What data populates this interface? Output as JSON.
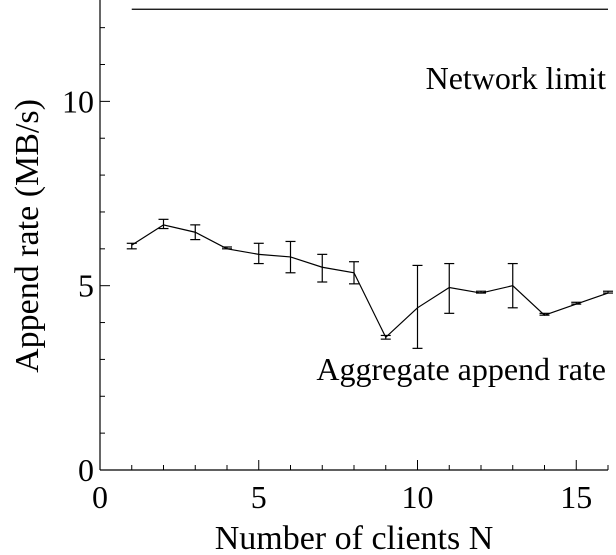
{
  "chart_data": {
    "type": "line",
    "xlabel": "Number of clients N",
    "ylabel": "Append rate (MB/s)",
    "xlim": [
      0,
      16
    ],
    "ylim": [
      0,
      12.75
    ],
    "x_ticks": [
      0,
      5,
      10,
      15
    ],
    "y_ticks": [
      0,
      5,
      10
    ],
    "grid": false,
    "series": [
      {
        "name": "Network limit",
        "x": [
          1,
          16
        ],
        "values": [
          12.5,
          12.5
        ],
        "label_position": [
          16,
          10.7
        ]
      },
      {
        "name": "Aggregate append rate",
        "x": [
          1,
          2,
          3,
          4,
          5,
          6,
          7,
          8,
          9,
          10,
          11,
          12,
          13,
          14,
          15,
          16
        ],
        "values": [
          6.1,
          6.65,
          6.45,
          6.0,
          5.85,
          5.78,
          5.5,
          5.35,
          3.6,
          4.4,
          4.95,
          4.8,
          5.0,
          4.2,
          4.5,
          4.8
        ],
        "error_low": [
          6.0,
          6.55,
          6.25,
          6.0,
          5.6,
          5.35,
          5.1,
          5.05,
          3.55,
          3.3,
          4.25,
          4.8,
          4.4,
          4.2,
          4.5,
          4.8
        ],
        "error_high": [
          6.15,
          6.8,
          6.65,
          6.05,
          6.15,
          6.2,
          5.85,
          5.65,
          3.65,
          5.55,
          5.6,
          4.85,
          5.6,
          4.25,
          4.55,
          4.85
        ],
        "label_position": [
          16,
          2.75
        ]
      }
    ]
  }
}
